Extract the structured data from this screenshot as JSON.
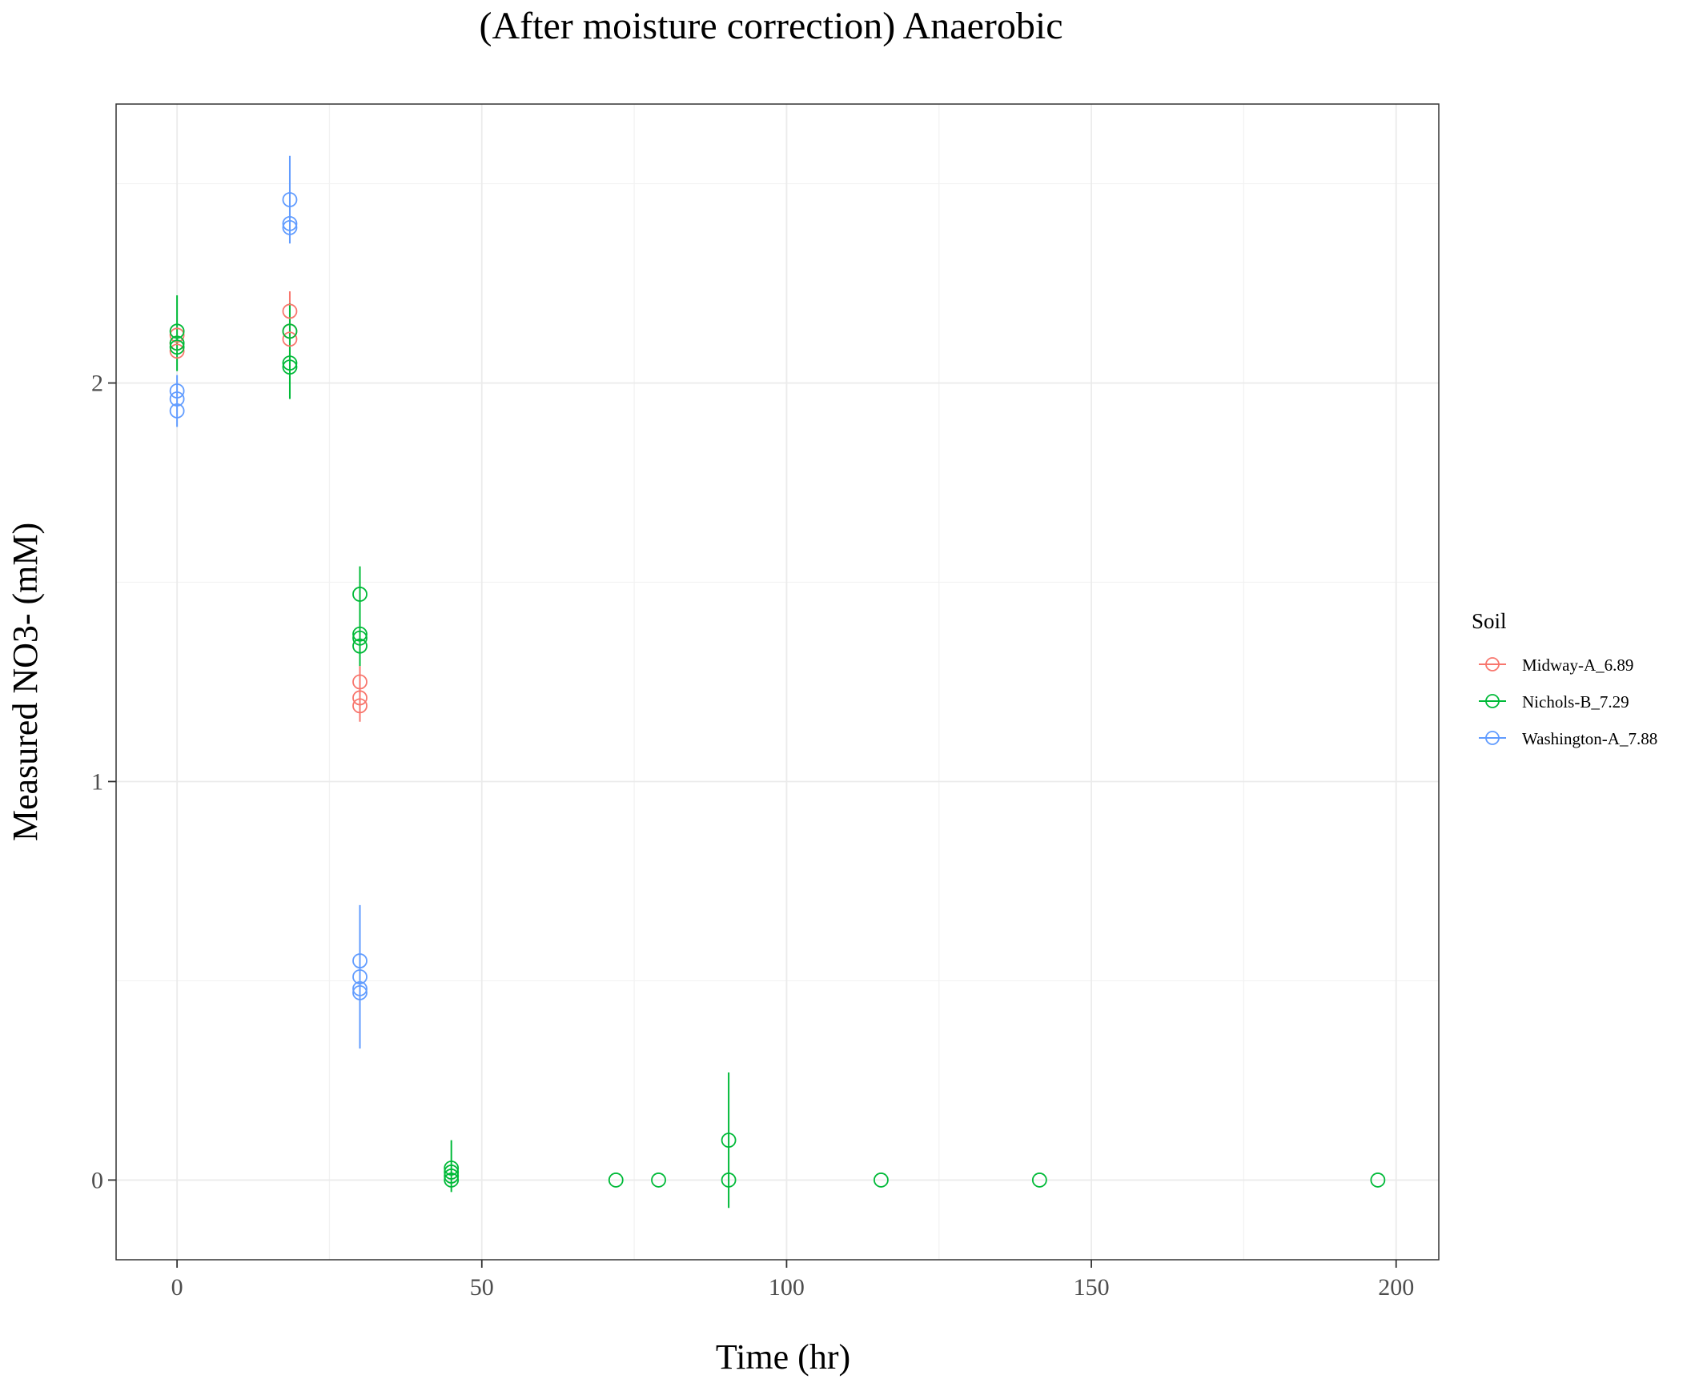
{
  "chart_data": {
    "type": "scatter",
    "title": "(After moisture correction) Anaerobic",
    "xlabel": "Time (hr)",
    "ylabel": "Measured NO3- (mM)",
    "xlim": [
      -10,
      207
    ],
    "ylim": [
      -0.2,
      2.7
    ],
    "xticks": [
      0,
      50,
      100,
      150,
      200
    ],
    "yticks": [
      0,
      1,
      2
    ],
    "grid": true,
    "legend": {
      "title": "Soil",
      "position": "right"
    },
    "series": [
      {
        "name": "Midway-A_6.89",
        "color": "#F8766D",
        "points": [
          {
            "x": 0,
            "y": 2.08
          },
          {
            "x": 0,
            "y": 2.1
          },
          {
            "x": 0,
            "y": 2.12
          },
          {
            "x": 18.5,
            "y": 2.11
          },
          {
            "x": 18.5,
            "y": 2.13
          },
          {
            "x": 18.5,
            "y": 2.18
          },
          {
            "x": 30,
            "y": 1.19
          },
          {
            "x": 30,
            "y": 1.21
          },
          {
            "x": 30,
            "y": 1.25
          }
        ],
        "error_bars": [
          {
            "x": 18.5,
            "low": 2.06,
            "high": 2.23
          },
          {
            "x": 30,
            "low": 1.15,
            "high": 1.29
          }
        ]
      },
      {
        "name": "Nichols-B_7.29",
        "color": "#00BA38",
        "points": [
          {
            "x": 0,
            "y": 2.09
          },
          {
            "x": 0,
            "y": 2.1
          },
          {
            "x": 0,
            "y": 2.13
          },
          {
            "x": 18.5,
            "y": 2.04
          },
          {
            "x": 18.5,
            "y": 2.05
          },
          {
            "x": 18.5,
            "y": 2.13
          },
          {
            "x": 30,
            "y": 1.34
          },
          {
            "x": 30,
            "y": 1.36
          },
          {
            "x": 30,
            "y": 1.37
          },
          {
            "x": 30,
            "y": 1.47
          },
          {
            "x": 45,
            "y": 0.0
          },
          {
            "x": 45,
            "y": 0.01
          },
          {
            "x": 45,
            "y": 0.02
          },
          {
            "x": 45,
            "y": 0.03
          },
          {
            "x": 72,
            "y": 0.0
          },
          {
            "x": 79,
            "y": 0.0
          },
          {
            "x": 90.5,
            "y": 0.0
          },
          {
            "x": 90.5,
            "y": 0.1
          },
          {
            "x": 115.5,
            "y": 0.0
          },
          {
            "x": 141.5,
            "y": 0.0
          },
          {
            "x": 197,
            "y": 0.0
          }
        ],
        "error_bars": [
          {
            "x": 0,
            "low": 2.03,
            "high": 2.22
          },
          {
            "x": 18.5,
            "low": 1.96,
            "high": 2.2
          },
          {
            "x": 30,
            "low": 1.29,
            "high": 1.54
          },
          {
            "x": 45,
            "low": -0.03,
            "high": 0.1
          },
          {
            "x": 90.5,
            "low": -0.07,
            "high": 0.27
          }
        ]
      },
      {
        "name": "Washington-A_7.88",
        "color": "#619CFF",
        "points": [
          {
            "x": 0,
            "y": 1.93
          },
          {
            "x": 0,
            "y": 1.96
          },
          {
            "x": 0,
            "y": 1.98
          },
          {
            "x": 18.5,
            "y": 2.39
          },
          {
            "x": 18.5,
            "y": 2.4
          },
          {
            "x": 18.5,
            "y": 2.46
          },
          {
            "x": 30,
            "y": 0.47
          },
          {
            "x": 30,
            "y": 0.48
          },
          {
            "x": 30,
            "y": 0.51
          },
          {
            "x": 30,
            "y": 0.55
          }
        ],
        "error_bars": [
          {
            "x": 0,
            "low": 1.89,
            "high": 2.02
          },
          {
            "x": 18.5,
            "low": 2.35,
            "high": 2.57
          },
          {
            "x": 30,
            "low": 0.33,
            "high": 0.69
          }
        ]
      }
    ]
  }
}
